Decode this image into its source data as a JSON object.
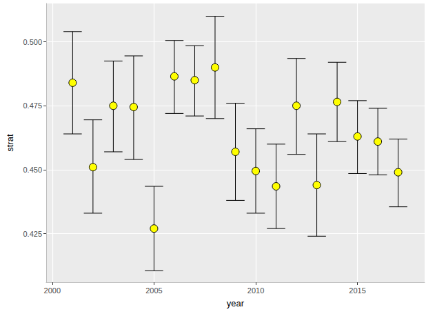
{
  "chart_data": {
    "type": "scatter",
    "x_label": "year",
    "y_label": "strat",
    "x": [
      2001,
      2002,
      2003,
      2004,
      2005,
      2006,
      2007,
      2008,
      2009,
      2010,
      2011,
      2012,
      2013,
      2014,
      2015,
      2016,
      2017
    ],
    "values": [
      0.484,
      0.451,
      0.475,
      0.4745,
      0.427,
      0.4865,
      0.485,
      0.49,
      0.457,
      0.4495,
      0.4435,
      0.475,
      0.444,
      0.4765,
      0.463,
      0.461,
      0.449
    ],
    "lower": [
      0.464,
      0.433,
      0.457,
      0.454,
      0.4105,
      0.472,
      0.471,
      0.47,
      0.438,
      0.433,
      0.427,
      0.456,
      0.424,
      0.461,
      0.4485,
      0.448,
      0.4355
    ],
    "upper": [
      0.504,
      0.4695,
      0.4925,
      0.4945,
      0.4435,
      0.5005,
      0.4985,
      0.51,
      0.476,
      0.466,
      0.46,
      0.4935,
      0.464,
      0.492,
      0.477,
      0.474,
      0.462
    ],
    "color": "#ffff00",
    "marker": "circle",
    "xlim": [
      1999.7,
      2018.3
    ],
    "xticks": [
      2000,
      2005,
      2010,
      2015
    ],
    "ylim": [
      0.406,
      0.515
    ],
    "yticks": [
      {
        "value": 0.425,
        "label": "0.425"
      },
      {
        "value": 0.45,
        "label": "0.450"
      },
      {
        "value": 0.475,
        "label": "0.475"
      },
      {
        "value": 0.5,
        "label": "0.500"
      }
    ],
    "grid": true
  }
}
